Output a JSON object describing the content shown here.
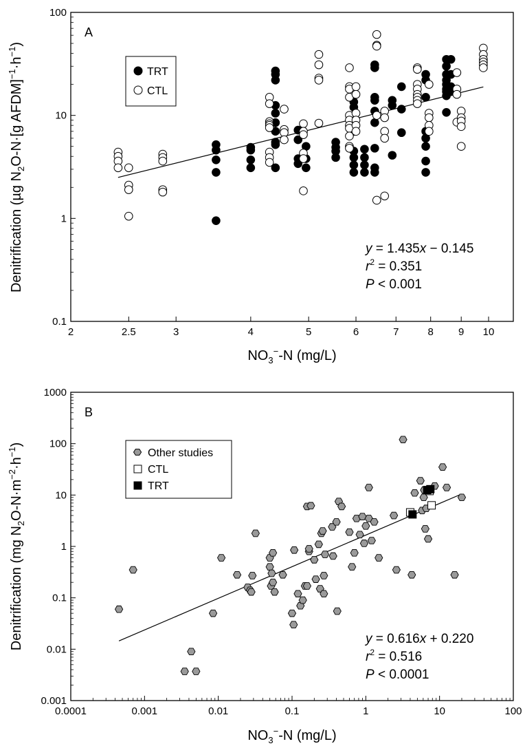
{
  "chart_data": [
    {
      "panel": "A",
      "type": "scatter",
      "xlabel": "NO₃⁻-N (mg/L)",
      "ylabel": "Denitrification (µg N₂O-N·[g AFDM]⁻¹·h⁻¹)",
      "xscale": "log",
      "yscale": "log",
      "xlim": [
        2,
        11
      ],
      "ylim": [
        0.1,
        100
      ],
      "xticks": [
        2,
        2.5,
        3,
        4,
        5,
        6,
        7,
        8,
        9,
        10
      ],
      "yticks": [
        0.1,
        1,
        10,
        100
      ],
      "legend_position": "top-left",
      "series": [
        {
          "name": "TRT",
          "marker": "filled-circle",
          "points": [
            [
              3.5,
              5.2
            ],
            [
              3.5,
              4.6
            ],
            [
              3.5,
              3.7
            ],
            [
              3.5,
              2.8
            ],
            [
              3.5,
              0.95
            ],
            [
              4.0,
              4.9
            ],
            [
              4.0,
              4.6
            ],
            [
              4.0,
              3.7
            ],
            [
              4.0,
              3.1
            ],
            [
              4.4,
              27
            ],
            [
              4.4,
              25
            ],
            [
              4.4,
              22
            ],
            [
              4.4,
              12.5
            ],
            [
              4.4,
              10.5
            ],
            [
              4.4,
              8.5
            ],
            [
              4.4,
              7
            ],
            [
              4.4,
              5.5
            ],
            [
              4.4,
              5.2
            ],
            [
              4.4,
              3.1
            ],
            [
              4.8,
              7.2
            ],
            [
              4.8,
              5.8
            ],
            [
              4.8,
              3.8
            ],
            [
              4.8,
              3.4
            ],
            [
              4.95,
              5
            ],
            [
              4.95,
              3.8
            ],
            [
              4.95,
              3.1
            ],
            [
              5.55,
              5.5
            ],
            [
              5.55,
              4.9
            ],
            [
              5.55,
              4.5
            ],
            [
              5.55,
              3.9
            ],
            [
              5.95,
              13.5
            ],
            [
              5.95,
              12
            ],
            [
              5.95,
              10
            ],
            [
              5.95,
              8
            ],
            [
              5.95,
              7
            ],
            [
              5.95,
              4.5
            ],
            [
              5.95,
              3.9
            ],
            [
              5.95,
              3.3
            ],
            [
              5.95,
              2.8
            ],
            [
              6.2,
              4.7
            ],
            [
              6.2,
              3.9
            ],
            [
              6.2,
              3.3
            ],
            [
              6.2,
              2.8
            ],
            [
              6.45,
              31
            ],
            [
              6.45,
              29
            ],
            [
              6.45,
              15
            ],
            [
              6.45,
              14
            ],
            [
              6.45,
              11
            ],
            [
              6.45,
              8.5
            ],
            [
              6.45,
              4.8
            ],
            [
              6.45,
              3.1
            ],
            [
              6.45,
              2.8
            ],
            [
              6.9,
              14
            ],
            [
              6.9,
              12.5
            ],
            [
              6.9,
              4.1
            ],
            [
              7.15,
              19
            ],
            [
              7.15,
              11.5
            ],
            [
              7.15,
              6.8
            ],
            [
              7.85,
              25
            ],
            [
              7.85,
              22
            ],
            [
              7.85,
              15
            ],
            [
              7.85,
              7
            ],
            [
              7.85,
              6
            ],
            [
              7.85,
              5
            ],
            [
              7.85,
              3.6
            ],
            [
              7.85,
              2.8
            ],
            [
              8.5,
              35
            ],
            [
              8.5,
              30
            ],
            [
              8.5,
              25
            ],
            [
              8.5,
              22
            ],
            [
              8.5,
              20
            ],
            [
              8.5,
              18
            ],
            [
              8.5,
              17
            ],
            [
              8.5,
              15.5
            ],
            [
              8.5,
              10.7
            ],
            [
              8.65,
              35
            ],
            [
              8.65,
              25
            ],
            [
              8.65,
              19
            ],
            [
              8.65,
              17
            ]
          ]
        },
        {
          "name": "CTL",
          "marker": "open-circle",
          "points": [
            [
              2.4,
              4.4
            ],
            [
              2.4,
              4.0
            ],
            [
              2.4,
              3.6
            ],
            [
              2.4,
              3.1
            ],
            [
              2.5,
              3.1
            ],
            [
              2.5,
              2.1
            ],
            [
              2.5,
              1.9
            ],
            [
              2.5,
              1.05
            ],
            [
              2.85,
              4.2
            ],
            [
              2.85,
              3.9
            ],
            [
              2.85,
              3.6
            ],
            [
              2.85,
              1.9
            ],
            [
              2.85,
              1.8
            ],
            [
              4.3,
              15
            ],
            [
              4.3,
              13
            ],
            [
              4.3,
              8.7
            ],
            [
              4.3,
              8.3
            ],
            [
              4.3,
              8
            ],
            [
              4.3,
              7.6
            ],
            [
              4.3,
              4.4
            ],
            [
              4.3,
              3.9
            ],
            [
              4.3,
              3.5
            ],
            [
              4.55,
              11.5
            ],
            [
              4.55,
              7.3
            ],
            [
              4.55,
              6.8
            ],
            [
              4.55,
              5.8
            ],
            [
              4.9,
              8.3
            ],
            [
              4.9,
              7
            ],
            [
              4.9,
              6.5
            ],
            [
              4.9,
              4.3
            ],
            [
              4.9,
              3.8
            ],
            [
              4.9,
              1.85
            ],
            [
              5.2,
              39
            ],
            [
              5.2,
              31
            ],
            [
              5.2,
              23
            ],
            [
              5.2,
              22
            ],
            [
              5.2,
              8.4
            ],
            [
              5.85,
              29
            ],
            [
              5.85,
              19
            ],
            [
              5.85,
              18
            ],
            [
              5.85,
              15
            ],
            [
              5.85,
              10
            ],
            [
              5.85,
              9
            ],
            [
              5.85,
              8
            ],
            [
              5.85,
              7.5
            ],
            [
              5.85,
              6.3
            ],
            [
              5.85,
              5
            ],
            [
              5.85,
              4.8
            ],
            [
              6.0,
              19
            ],
            [
              6.0,
              16
            ],
            [
              6.0,
              10.5
            ],
            [
              6.0,
              9
            ],
            [
              6.0,
              8
            ],
            [
              6.0,
              7
            ],
            [
              6.5,
              61
            ],
            [
              6.5,
              48
            ],
            [
              6.5,
              47
            ],
            [
              6.5,
              10
            ],
            [
              6.5,
              1.5
            ],
            [
              6.7,
              11
            ],
            [
              6.7,
              9.5
            ],
            [
              6.7,
              7
            ],
            [
              6.7,
              6
            ],
            [
              6.7,
              1.65
            ],
            [
              7.6,
              29
            ],
            [
              7.6,
              28
            ],
            [
              7.6,
              20
            ],
            [
              7.6,
              18
            ],
            [
              7.6,
              16
            ],
            [
              7.6,
              15
            ],
            [
              7.6,
              14
            ],
            [
              7.6,
              13
            ],
            [
              7.95,
              20
            ],
            [
              7.95,
              10.5
            ],
            [
              7.95,
              9.5
            ],
            [
              7.95,
              8
            ],
            [
              7.95,
              7
            ],
            [
              8.85,
              26
            ],
            [
              8.85,
              18
            ],
            [
              8.85,
              16
            ],
            [
              8.85,
              8.6
            ],
            [
              9.0,
              11
            ],
            [
              9.0,
              9.5
            ],
            [
              9.0,
              8.8
            ],
            [
              9.0,
              7.8
            ],
            [
              9.0,
              5
            ],
            [
              9.8,
              45
            ],
            [
              9.8,
              39
            ],
            [
              9.8,
              35
            ],
            [
              9.8,
              33
            ],
            [
              9.8,
              31
            ],
            [
              9.8,
              29
            ]
          ]
        }
      ],
      "regression_line": {
        "x": [
          2.4,
          9.8
        ],
        "y": [
          2.5,
          18.9
        ]
      },
      "annotation": {
        "eq": [
          "y",
          " = 1.435",
          "x",
          " − 0.145"
        ],
        "r2": [
          "r",
          "2",
          " = 0.351"
        ],
        "p": [
          "P",
          " < 0.001"
        ]
      }
    },
    {
      "panel": "B",
      "type": "scatter",
      "xlabel": "NO₃⁻-N (mg/L)",
      "ylabel": "Denitrification (mg N₂O-N·m⁻²·h⁻¹)",
      "xscale": "log",
      "yscale": "log",
      "xlim": [
        0.0001,
        100
      ],
      "ylim": [
        0.001,
        1000
      ],
      "xticks": [
        0.0001,
        0.001,
        0.01,
        0.1,
        1,
        10,
        100
      ],
      "yticks": [
        0.001,
        0.01,
        0.1,
        1,
        10,
        100,
        1000
      ],
      "legend_position": "top-left",
      "series": [
        {
          "name": "Other studies",
          "marker": "gray-hexagon",
          "points": [
            [
              0.00045,
              0.06
            ],
            [
              0.0007,
              0.35
            ],
            [
              0.0035,
              0.0037
            ],
            [
              0.0043,
              0.009
            ],
            [
              0.005,
              0.0037
            ],
            [
              0.0085,
              0.05
            ],
            [
              0.011,
              0.6
            ],
            [
              0.018,
              0.28
            ],
            [
              0.025,
              0.16
            ],
            [
              0.027,
              0.14
            ],
            [
              0.028,
              0.13
            ],
            [
              0.029,
              0.27
            ],
            [
              0.032,
              1.8
            ],
            [
              0.05,
              0.6
            ],
            [
              0.05,
              0.4
            ],
            [
              0.052,
              0.17
            ],
            [
              0.053,
              0.3
            ],
            [
              0.055,
              0.2
            ],
            [
              0.055,
              0.75
            ],
            [
              0.058,
              0.13
            ],
            [
              0.075,
              0.28
            ],
            [
              0.1,
              0.05
            ],
            [
              0.105,
              0.03
            ],
            [
              0.107,
              0.85
            ],
            [
              0.12,
              0.12
            ],
            [
              0.13,
              0.07
            ],
            [
              0.14,
              0.09
            ],
            [
              0.15,
              0.17
            ],
            [
              0.16,
              0.17
            ],
            [
              0.16,
              6
            ],
            [
              0.17,
              0.8
            ],
            [
              0.17,
              0.9
            ],
            [
              0.18,
              6.2
            ],
            [
              0.2,
              0.55
            ],
            [
              0.21,
              0.23
            ],
            [
              0.23,
              1.1
            ],
            [
              0.24,
              0.15
            ],
            [
              0.25,
              1.8
            ],
            [
              0.26,
              2
            ],
            [
              0.27,
              0.27
            ],
            [
              0.27,
              0.12
            ],
            [
              0.28,
              0.7
            ],
            [
              0.35,
              2.4
            ],
            [
              0.36,
              0.65
            ],
            [
              0.4,
              3
            ],
            [
              0.41,
              0.055
            ],
            [
              0.43,
              7.5
            ],
            [
              0.47,
              6
            ],
            [
              0.6,
              1.9
            ],
            [
              0.65,
              0.4
            ],
            [
              0.7,
              0.75
            ],
            [
              0.75,
              3.5
            ],
            [
              0.83,
              1.7
            ],
            [
              0.9,
              3.8
            ],
            [
              0.95,
              1.15
            ],
            [
              1.0,
              2.5
            ],
            [
              1.1,
              3.5
            ],
            [
              1.1,
              14
            ],
            [
              1.2,
              1.3
            ],
            [
              1.3,
              3
            ],
            [
              1.5,
              0.6
            ],
            [
              2.4,
              4
            ],
            [
              2.6,
              0.35
            ],
            [
              3.2,
              120
            ],
            [
              4.2,
              0.28
            ],
            [
              4.6,
              11
            ],
            [
              5.5,
              19
            ],
            [
              5.8,
              5
            ],
            [
              6.1,
              9
            ],
            [
              6.2,
              12.5
            ],
            [
              6.4,
              2.2
            ],
            [
              6.6,
              5.5
            ],
            [
              7.0,
              1.4
            ],
            [
              8.6,
              15
            ],
            [
              11.0,
              35
            ],
            [
              12.5,
              14
            ],
            [
              16,
              0.28
            ],
            [
              20,
              9
            ]
          ]
        },
        {
          "name": "CTL",
          "marker": "open-square",
          "points": [
            [
              4.0,
              4.6
            ],
            [
              7.8,
              6.3
            ],
            [
              7.3,
              12
            ]
          ]
        },
        {
          "name": "TRT",
          "marker": "filled-square",
          "points": [
            [
              4.3,
              4.2
            ],
            [
              6.8,
              12.5
            ],
            [
              7.5,
              13
            ]
          ]
        }
      ],
      "regression_line": {
        "x": [
          0.00045,
          20
        ],
        "y": [
          0.0145,
          10.5
        ]
      },
      "annotation": {
        "eq": [
          "y",
          " = 0.616",
          "x",
          " + 0.220"
        ],
        "r2": [
          "r",
          "2",
          " = 0.516"
        ],
        "p": [
          "P",
          " < 0.0001"
        ]
      }
    }
  ]
}
